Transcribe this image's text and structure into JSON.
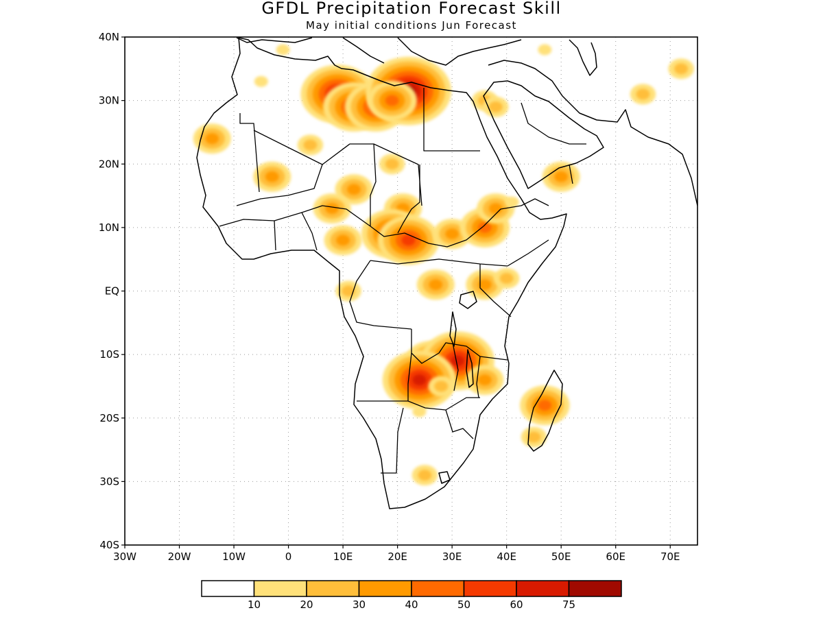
{
  "title": "GFDL Precipitation Forecast Skill",
  "subtitle": "May initial conditions  Jun Forecast",
  "map": {
    "lon_range": [
      -30,
      75
    ],
    "lat_range": [
      -40,
      40
    ],
    "lon_ticks": [
      {
        "value": -30,
        "label": "30W"
      },
      {
        "value": -20,
        "label": "20W"
      },
      {
        "value": -10,
        "label": "10W"
      },
      {
        "value": 0,
        "label": "0"
      },
      {
        "value": 10,
        "label": "10E"
      },
      {
        "value": 20,
        "label": "20E"
      },
      {
        "value": 30,
        "label": "30E"
      },
      {
        "value": 40,
        "label": "40E"
      },
      {
        "value": 50,
        "label": "50E"
      },
      {
        "value": 60,
        "label": "60E"
      },
      {
        "value": 70,
        "label": "70E"
      }
    ],
    "lat_ticks": [
      {
        "value": 40,
        "label": "40N"
      },
      {
        "value": 30,
        "label": "30N"
      },
      {
        "value": 20,
        "label": "20N"
      },
      {
        "value": 10,
        "label": "10N"
      },
      {
        "value": 0,
        "label": "EQ"
      },
      {
        "value": -10,
        "label": "10S"
      },
      {
        "value": -20,
        "label": "20S"
      },
      {
        "value": -30,
        "label": "30S"
      },
      {
        "value": -40,
        "label": "40S"
      }
    ],
    "grid": "dotted",
    "skill_regions": [
      {
        "lon": 9,
        "lat": 31,
        "level": 6
      },
      {
        "lon": 12,
        "lat": 29,
        "level": 5
      },
      {
        "lon": 16,
        "lat": 29,
        "level": 5
      },
      {
        "lon": 22,
        "lat": 31.5,
        "level": 7
      },
      {
        "lon": 19,
        "lat": 30,
        "level": 4
      },
      {
        "lon": -14,
        "lat": 24,
        "level": 3
      },
      {
        "lon": -3,
        "lat": 18,
        "level": 3
      },
      {
        "lon": 4,
        "lat": 23,
        "level": 2
      },
      {
        "lon": 12,
        "lat": 16,
        "level": 3
      },
      {
        "lon": 8,
        "lat": 13,
        "level": 3
      },
      {
        "lon": 19,
        "lat": 20,
        "level": 2
      },
      {
        "lon": 21,
        "lat": 13,
        "level": 3
      },
      {
        "lon": 19,
        "lat": 9,
        "level": 5
      },
      {
        "lon": 22,
        "lat": 8,
        "level": 5
      },
      {
        "lon": 30,
        "lat": 9,
        "level": 3
      },
      {
        "lon": 36,
        "lat": 10,
        "level": 4
      },
      {
        "lon": 38,
        "lat": 13,
        "level": 3
      },
      {
        "lon": 10,
        "lat": 8,
        "level": 3
      },
      {
        "lon": 27,
        "lat": 1,
        "level": 3
      },
      {
        "lon": 36,
        "lat": 1,
        "level": 3
      },
      {
        "lon": 40,
        "lat": 2,
        "level": 2
      },
      {
        "lon": 11,
        "lat": 0,
        "level": 2
      },
      {
        "lon": 26,
        "lat": -11,
        "level": 4
      },
      {
        "lon": 31,
        "lat": -11,
        "level": 6
      },
      {
        "lon": 24,
        "lat": -14,
        "level": 6
      },
      {
        "lon": 36,
        "lat": -14,
        "level": 3
      },
      {
        "lon": 28,
        "lat": -15,
        "level": 2
      },
      {
        "lon": 47,
        "lat": -18,
        "level": 4
      },
      {
        "lon": 45,
        "lat": -23,
        "level": 2
      },
      {
        "lon": 25,
        "lat": -29,
        "level": 2
      },
      {
        "lon": 24,
        "lat": -19,
        "level": 1
      },
      {
        "lon": 41,
        "lat": 14,
        "level": 1
      },
      {
        "lon": 36,
        "lat": 30,
        "level": 2
      },
      {
        "lon": 38,
        "lat": 29,
        "level": 2
      },
      {
        "lon": 50,
        "lat": 18,
        "level": 3
      },
      {
        "lon": 65,
        "lat": 31,
        "level": 2
      },
      {
        "lon": 72,
        "lat": 35,
        "level": 2
      },
      {
        "lon": 47,
        "lat": 38,
        "level": 1
      },
      {
        "lon": -1,
        "lat": 38,
        "level": 1
      },
      {
        "lon": -5,
        "lat": 33,
        "level": 1
      }
    ]
  },
  "colorbar": {
    "labels": [
      "10",
      "20",
      "30",
      "40",
      "50",
      "60",
      "75"
    ],
    "colors": [
      "#ffffff",
      "#ffe17a",
      "#ffbe3a",
      "#ff9a00",
      "#ff6a00",
      "#f53a00",
      "#d81a00",
      "#a00a00"
    ]
  }
}
